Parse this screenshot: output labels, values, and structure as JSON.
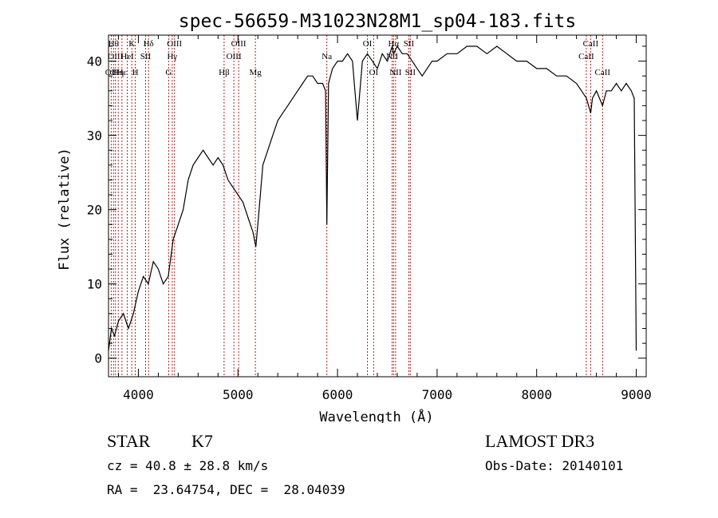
{
  "chart_data": {
    "type": "line",
    "title": "spec-56659-M31023N28M1_sp04-183.fits",
    "xlabel": "Wavelength (Å)",
    "ylabel": "Flux (relative)",
    "xlim": [
      3700,
      9100
    ],
    "ylim": [
      -2.5,
      43.5
    ],
    "x_ticks": [
      4000,
      5000,
      6000,
      7000,
      8000,
      9000
    ],
    "y_ticks": [
      0,
      10,
      20,
      30,
      40
    ],
    "y_tick_labels": [
      "0",
      "10",
      "20",
      "30",
      "40"
    ],
    "series": [
      {
        "name": "spectrum",
        "x": [
          3700,
          3730,
          3760,
          3800,
          3850,
          3900,
          3950,
          4000,
          4050,
          4100,
          4150,
          4200,
          4250,
          4300,
          4350,
          4400,
          4450,
          4500,
          4550,
          4600,
          4650,
          4700,
          4750,
          4800,
          4850,
          4900,
          4950,
          5000,
          5050,
          5100,
          5150,
          5180,
          5200,
          5250,
          5300,
          5350,
          5400,
          5450,
          5500,
          5550,
          5600,
          5650,
          5700,
          5750,
          5800,
          5850,
          5880,
          5893,
          5910,
          5950,
          6000,
          6050,
          6100,
          6150,
          6200,
          6250,
          6300,
          6350,
          6400,
          6450,
          6500,
          6550,
          6563,
          6600,
          6650,
          6700,
          6750,
          6800,
          6850,
          6900,
          6950,
          7000,
          7100,
          7200,
          7300,
          7400,
          7500,
          7600,
          7700,
          7800,
          7900,
          8000,
          8100,
          8200,
          8300,
          8400,
          8450,
          8500,
          8542,
          8560,
          8600,
          8662,
          8700,
          8750,
          8800,
          8850,
          8900,
          8950,
          8980,
          9000
        ],
        "values": [
          1,
          4,
          3,
          5,
          6,
          4,
          6,
          9,
          11,
          10,
          13,
          12,
          10,
          11,
          16,
          18,
          20,
          24,
          26,
          27,
          28,
          27,
          26,
          27,
          26,
          24,
          23,
          22,
          21,
          19,
          17,
          15,
          18,
          26,
          28,
          30,
          32,
          33,
          34,
          35,
          36,
          37,
          38,
          38,
          37,
          37,
          36,
          18,
          37,
          39,
          40,
          40,
          41,
          40,
          32,
          40,
          41,
          40,
          39,
          41,
          40,
          42,
          41,
          42,
          41,
          41,
          40,
          39,
          38,
          39,
          40,
          40,
          41,
          41,
          42,
          42,
          41,
          42,
          41,
          40,
          40,
          39,
          39,
          38,
          38,
          37,
          36,
          35,
          33,
          35,
          36,
          34,
          36,
          36,
          37,
          36,
          37,
          36,
          35,
          1
        ]
      }
    ],
    "lines": [
      {
        "x": 3727,
        "label": "OII",
        "row": 3
      },
      {
        "x": 3750,
        "label": "Hθ",
        "row": 1
      },
      {
        "x": 3770,
        "label": "OIII",
        "row": 2
      },
      {
        "x": 3798,
        "label": "Hη",
        "row": 3
      },
      {
        "x": 3835,
        "label": "Hε",
        "row": 3
      },
      {
        "x": 3889,
        "label": "HeI",
        "row": 2
      },
      {
        "x": 3934,
        "label": "K",
        "row": 1
      },
      {
        "x": 3969,
        "label": "H",
        "row": 3
      },
      {
        "x": 4072,
        "label": "SII",
        "row": 2
      },
      {
        "x": 4102,
        "label": "Hδ",
        "row": 1
      },
      {
        "x": 4304,
        "label": "G",
        "row": 3
      },
      {
        "x": 4340,
        "label": "Hγ",
        "row": 2
      },
      {
        "x": 4363,
        "label": "OIII",
        "row": 1
      },
      {
        "x": 4861,
        "label": "Hβ",
        "row": 3
      },
      {
        "x": 4959,
        "label": "OIII",
        "row": 2
      },
      {
        "x": 5007,
        "label": "OIII",
        "row": 1
      },
      {
        "x": 5175,
        "label": "Mg",
        "row": 3
      },
      {
        "x": 5893,
        "label": "Na",
        "row": 2
      },
      {
        "x": 6300,
        "label": "OI",
        "row": 1
      },
      {
        "x": 6363,
        "label": "OI",
        "row": 3
      },
      {
        "x": 6548,
        "label": "NII",
        "row": 2
      },
      {
        "x": 6563,
        "label": "Hα",
        "row": 1
      },
      {
        "x": 6583,
        "label": "NII",
        "row": 3
      },
      {
        "x": 6716,
        "label": "SII",
        "row": 1
      },
      {
        "x": 6731,
        "label": "SII",
        "row": 3
      },
      {
        "x": 8498,
        "label": "CaII",
        "row": 2
      },
      {
        "x": 8542,
        "label": "CaII",
        "row": 1
      },
      {
        "x": 8662,
        "label": "CaII",
        "row": 3
      }
    ]
  },
  "info": {
    "object_class": "STAR",
    "subclass": "K7",
    "survey": "LAMOST DR3",
    "cz": "cz = 40.8 ± 28.8 km/s",
    "obs_date": "Obs-Date: 20140101",
    "coords": "RA =  23.64754, DEC =  28.04039"
  },
  "colors": {
    "line": "#000000",
    "marker": "#c00000",
    "background": "#ffffff"
  }
}
